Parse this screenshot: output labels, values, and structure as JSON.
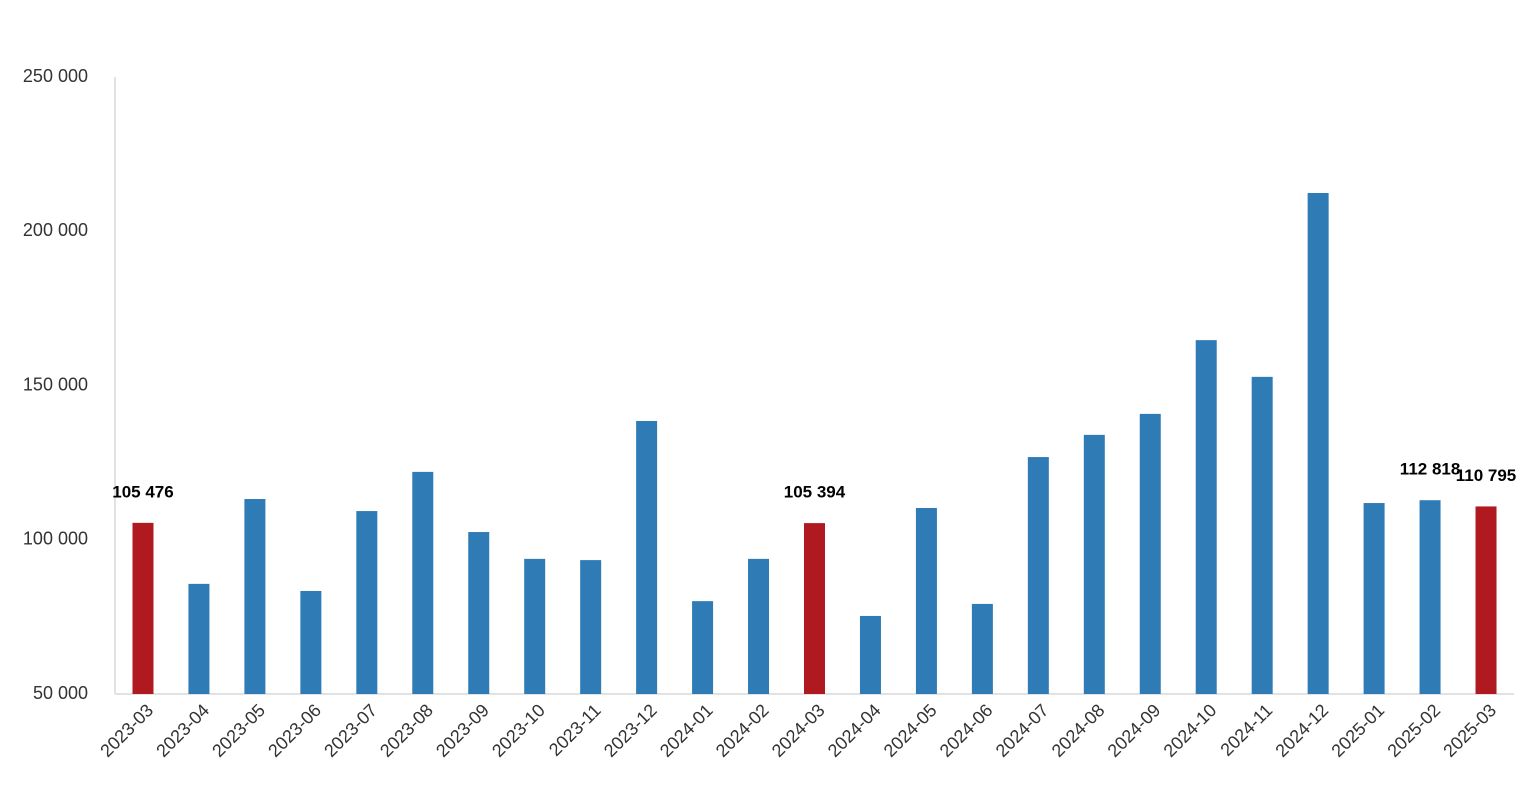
{
  "chart_data": {
    "type": "bar",
    "categories": [
      "2023-03",
      "2023-04",
      "2023-05",
      "2023-06",
      "2023-07",
      "2023-08",
      "2023-09",
      "2023-10",
      "2023-11",
      "2023-12",
      "2024-01",
      "2024-02",
      "2024-03",
      "2024-04",
      "2024-05",
      "2024-06",
      "2024-07",
      "2024-08",
      "2024-09",
      "2024-10",
      "2024-11",
      "2024-12",
      "2025-01",
      "2025-02",
      "2025-03"
    ],
    "values": [
      105476,
      85700,
      113200,
      83400,
      109300,
      122000,
      102500,
      93800,
      93400,
      138500,
      80100,
      93800,
      105394,
      75300,
      110300,
      79200,
      126800,
      134000,
      140800,
      164700,
      152800,
      212400,
      111900,
      112818,
      110795
    ],
    "value_labels": [
      "105 476",
      null,
      null,
      null,
      null,
      null,
      null,
      null,
      null,
      null,
      null,
      null,
      "105 394",
      null,
      null,
      null,
      null,
      null,
      null,
      null,
      null,
      null,
      null,
      "112 818",
      "110 795"
    ],
    "colors": [
      "#b0191f",
      "#2e7bb6",
      "#2e7bb6",
      "#2e7bb6",
      "#2e7bb6",
      "#2e7bb6",
      "#2e7bb6",
      "#2e7bb6",
      "#2e7bb6",
      "#2e7bb6",
      "#2e7bb6",
      "#2e7bb6",
      "#b0191f",
      "#2e7bb6",
      "#2e7bb6",
      "#2e7bb6",
      "#2e7bb6",
      "#2e7bb6",
      "#2e7bb6",
      "#2e7bb6",
      "#2e7bb6",
      "#2e7bb6",
      "#2e7bb6",
      "#2e7bb6",
      "#b0191f"
    ],
    "ylim": [
      50000,
      250000
    ],
    "yticks": [
      {
        "value": 50000,
        "label": "50 000"
      },
      {
        "value": 100000,
        "label": "100 000"
      },
      {
        "value": 150000,
        "label": "150 000"
      },
      {
        "value": 200000,
        "label": "200 000"
      },
      {
        "value": 250000,
        "label": "250 000"
      }
    ],
    "grid": false
  }
}
